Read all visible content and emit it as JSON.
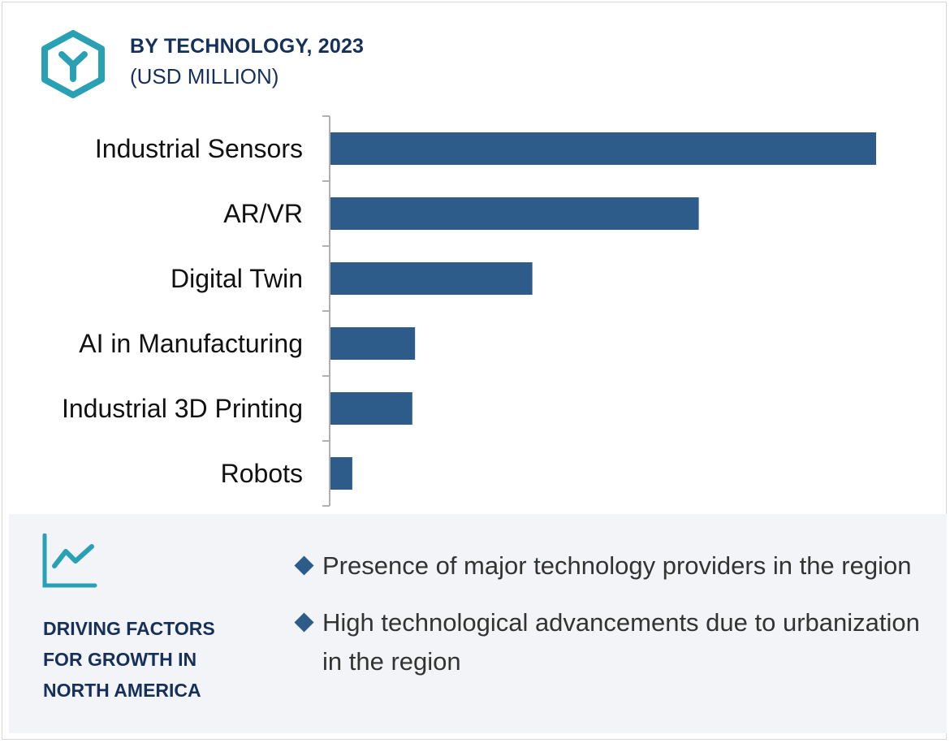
{
  "header": {
    "title": "BY TECHNOLOGY, 2023",
    "subtitle": "(USD MILLION)",
    "logo_icon": "hexagon-y-logo-icon"
  },
  "colors": {
    "bar": "#2e5c8a",
    "title": "#16305a",
    "accent": "#2aa0b5",
    "panel_bg": "#f3f4f7",
    "axis": "#b0b0b0",
    "label": "#111111"
  },
  "chart_data": {
    "type": "bar",
    "orientation": "horizontal",
    "title": "BY TECHNOLOGY, 2023",
    "subtitle": "(USD MILLION)",
    "xlabel": "",
    "ylabel": "",
    "grid": false,
    "value_axis_labels": false,
    "xlim": [
      0,
      100
    ],
    "categories": [
      "Industrial Sensors",
      "AR/VR",
      "Digital Twin",
      "AI in Manufacturing",
      "Industrial 3D Printing",
      "Robots"
    ],
    "values": [
      100,
      67.5,
      37,
      15.5,
      15,
      4
    ]
  },
  "factors": {
    "icon": "trend-line-chart-icon",
    "heading_lines": [
      "DRIVING FACTORS",
      "FOR GROWTH IN",
      "NORTH AMERICA"
    ],
    "items": [
      "Presence of major technology providers in the region",
      "High technological advancements due to urbanization in the region"
    ]
  }
}
